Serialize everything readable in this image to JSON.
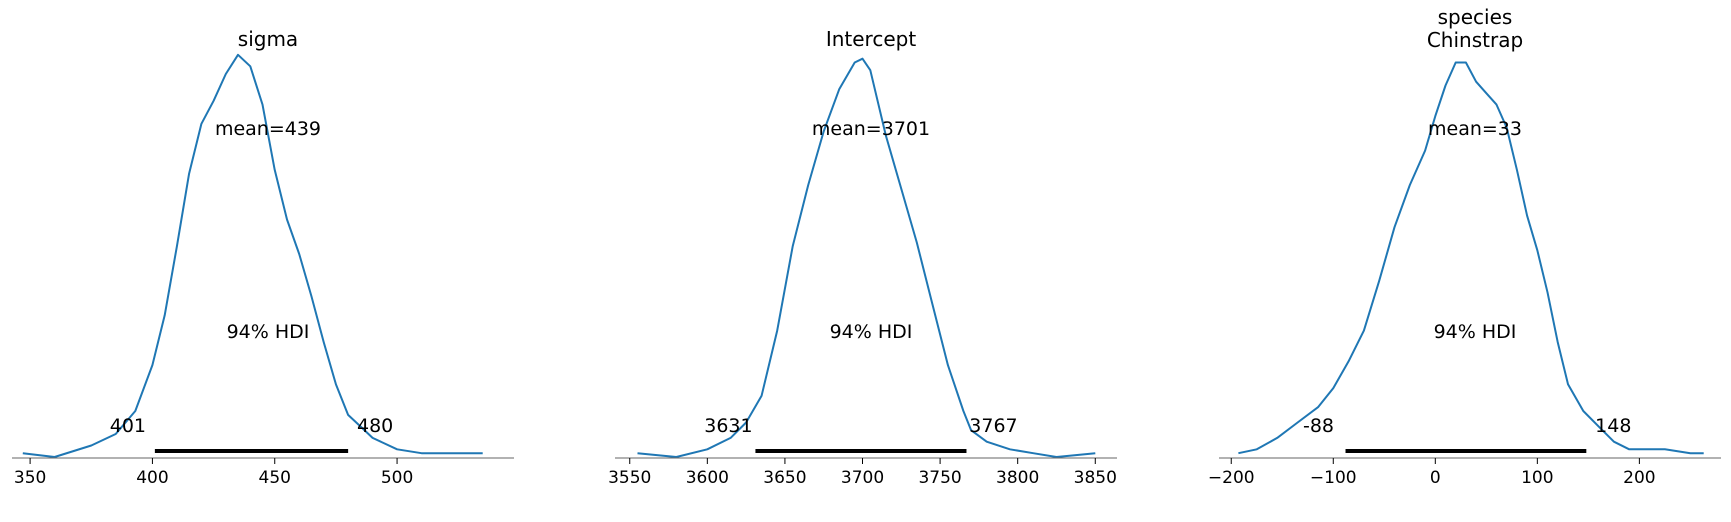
{
  "figure": {
    "line_color": "#1f77b4",
    "hdi_color": "#000000",
    "axis_color": "#666666"
  },
  "chart_data": [
    {
      "type": "line",
      "title": [
        "sigma"
      ],
      "mean_label": "mean=439",
      "hdi_label": "94% HDI",
      "hdi": [
        401,
        480
      ],
      "hdi_low_label": "401",
      "hdi_high_label": "480",
      "xlim": [
        342.6,
        547.8
      ],
      "xticks": [
        350,
        400,
        450,
        500
      ],
      "xtick_labels": [
        "350",
        "400",
        "450",
        "500"
      ],
      "x": [
        347,
        360,
        375,
        385,
        393,
        400,
        405,
        410,
        415,
        420,
        425,
        430,
        435,
        440,
        445,
        450,
        455,
        460,
        465,
        470,
        475,
        480,
        485,
        490,
        500,
        510,
        520,
        535
      ],
      "density": [
        0.01,
        0.0,
        0.03,
        0.06,
        0.12,
        0.24,
        0.37,
        0.55,
        0.74,
        0.87,
        0.93,
        1.0,
        1.05,
        1.02,
        0.92,
        0.75,
        0.62,
        0.53,
        0.42,
        0.3,
        0.19,
        0.11,
        0.08,
        0.05,
        0.02,
        0.01,
        0.01,
        0.01
      ]
    },
    {
      "type": "line",
      "title": [
        "Intercept"
      ],
      "mean_label": "mean=3701",
      "hdi_label": "94% HDI",
      "hdi": [
        3631,
        3767
      ],
      "hdi_low_label": "3631",
      "hdi_high_label": "3767",
      "xlim": [
        3540.5,
        3864
      ],
      "xticks": [
        3550,
        3600,
        3650,
        3700,
        3750,
        3800,
        3850
      ],
      "xtick_labels": [
        "3550",
        "3600",
        "3650",
        "3700",
        "3750",
        "3800",
        "3850"
      ],
      "x": [
        3555,
        3580,
        3600,
        3615,
        3625,
        3635,
        3645,
        3655,
        3665,
        3675,
        3685,
        3695,
        3700,
        3705,
        3715,
        3725,
        3735,
        3745,
        3755,
        3765,
        3770,
        3780,
        3795,
        3810,
        3825,
        3850
      ],
      "density": [
        0.01,
        0.0,
        0.02,
        0.05,
        0.09,
        0.16,
        0.33,
        0.55,
        0.71,
        0.85,
        0.96,
        1.03,
        1.04,
        1.01,
        0.84,
        0.7,
        0.56,
        0.4,
        0.24,
        0.12,
        0.07,
        0.04,
        0.02,
        0.01,
        0.0,
        0.01
      ]
    },
    {
      "type": "line",
      "title": [
        "species",
        "Chinstrap"
      ],
      "mean_label": "mean=33",
      "hdi_label": "94% HDI",
      "hdi": [
        -88,
        148
      ],
      "hdi_low_label": "-88",
      "hdi_high_label": "148",
      "xlim": [
        -212,
        280
      ],
      "xticks": [
        -200,
        -100,
        0,
        100,
        200
      ],
      "xtick_labels": [
        "−200",
        "−100",
        "0",
        "100",
        "200"
      ],
      "x": [
        -193,
        -175,
        -155,
        -135,
        -115,
        -100,
        -85,
        -70,
        -55,
        -40,
        -25,
        -10,
        0,
        10,
        20,
        30,
        40,
        50,
        60,
        70,
        80,
        90,
        100,
        110,
        120,
        130,
        145,
        160,
        175,
        190,
        205,
        225,
        250,
        263
      ],
      "density": [
        0.01,
        0.02,
        0.05,
        0.09,
        0.13,
        0.18,
        0.25,
        0.33,
        0.46,
        0.6,
        0.71,
        0.8,
        0.89,
        0.97,
        1.03,
        1.03,
        0.98,
        0.95,
        0.92,
        0.86,
        0.75,
        0.63,
        0.54,
        0.43,
        0.3,
        0.19,
        0.12,
        0.08,
        0.04,
        0.02,
        0.02,
        0.02,
        0.01,
        0.01
      ]
    }
  ]
}
